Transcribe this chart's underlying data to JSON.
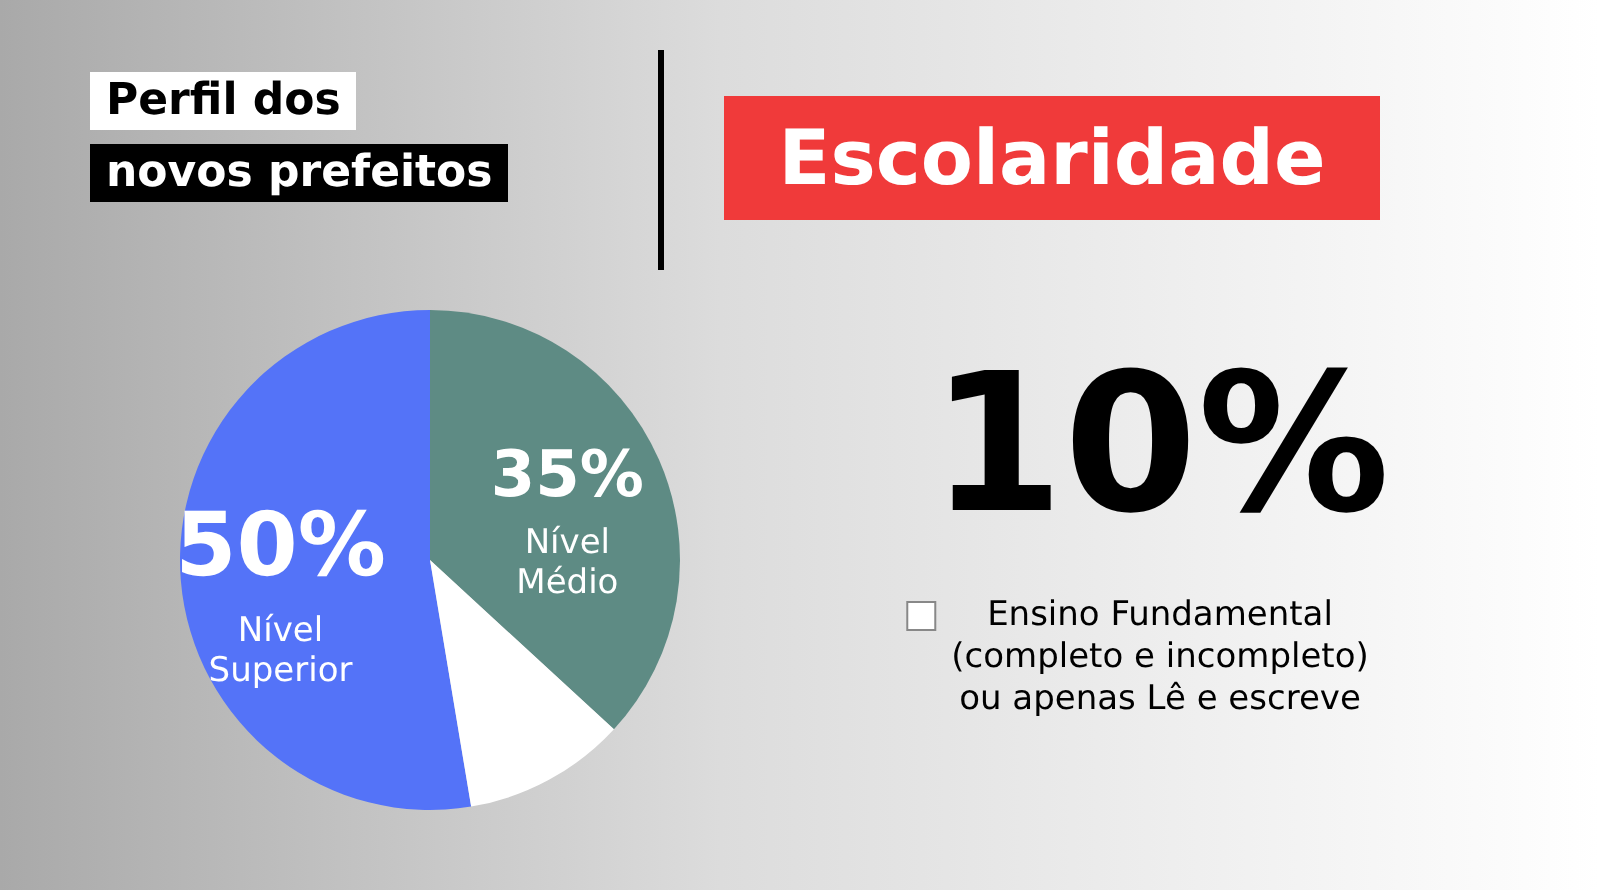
{
  "chart_data": {
    "type": "pie",
    "title": "Escolaridade",
    "subtitle": "Perfil dos novos prefeitos",
    "categories": [
      "Nível Superior",
      "Nível Médio",
      "Ensino Fundamental (completo e incompleto) ou apenas Lê e escreve"
    ],
    "values": [
      50,
      35,
      10
    ],
    "colors": [
      "#5473f8",
      "#5e8b84",
      "#ffffff"
    ],
    "value_labels": [
      "50%",
      "35%",
      "10%"
    ],
    "legend": "right"
  }
}
